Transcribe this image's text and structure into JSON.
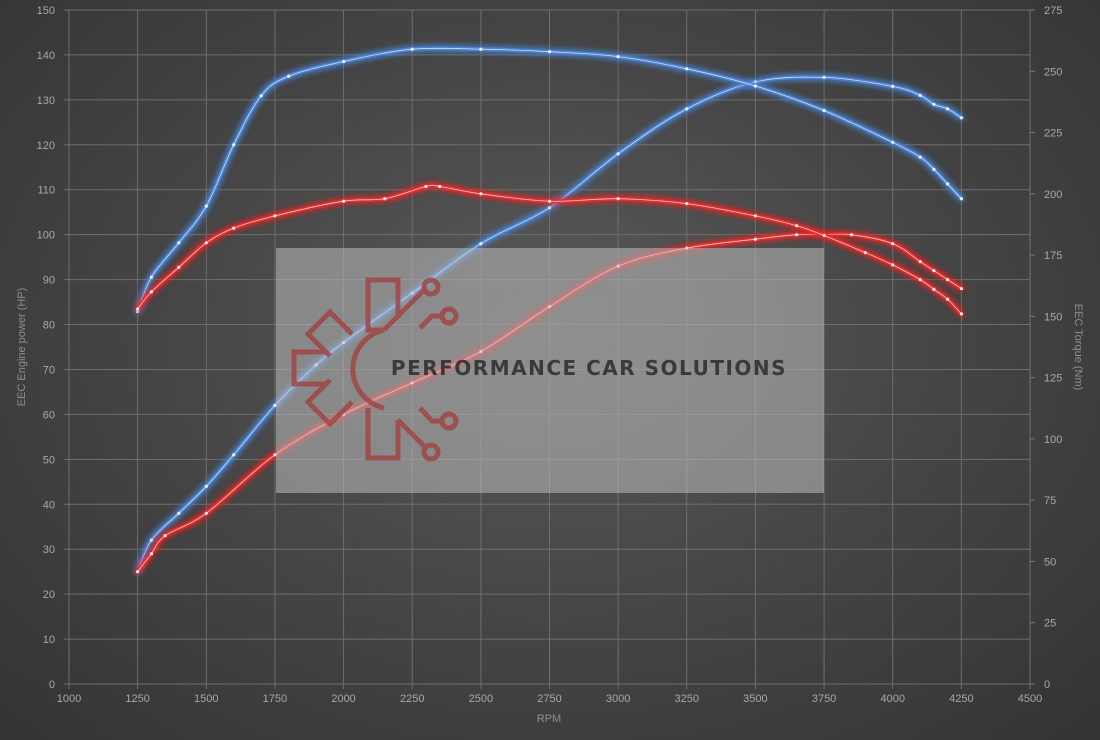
{
  "chart_data": {
    "type": "line",
    "xlabel": "RPM",
    "ylabel_left": "EEC Engine power (HP)",
    "ylabel_right": "EEC Torque (Nm)",
    "xlim": [
      1000,
      4500
    ],
    "ylim_left": [
      0,
      150
    ],
    "ylim_right": [
      0,
      275
    ],
    "x_ticks": [
      "1000",
      "1250",
      "1500",
      "1750",
      "2000",
      "2250",
      "2500",
      "2750",
      "3000",
      "3250",
      "3500",
      "3750",
      "4000",
      "4250",
      "4500"
    ],
    "y_ticks_left": [
      "0",
      "10",
      "20",
      "30",
      "40",
      "50",
      "60",
      "70",
      "80",
      "90",
      "100",
      "110",
      "120",
      "130",
      "140",
      "150"
    ],
    "y_ticks_right": [
      "0",
      "25",
      "50",
      "75",
      "100",
      "125",
      "150",
      "175",
      "200",
      "225",
      "250",
      "275"
    ],
    "grid": true,
    "legend": "none",
    "series": [
      {
        "axis": "left",
        "color": "#4a86d8",
        "x": [
          1250,
          1300,
          1400,
          1500,
          1600,
          1750,
          1900,
          2000,
          2250,
          2500,
          2750,
          3000,
          3250,
          3500,
          3750,
          4000,
          4100,
          4150,
          4200,
          4250
        ],
        "values": [
          25,
          32,
          38,
          44,
          51,
          62,
          71,
          76,
          87,
          98,
          106,
          118,
          128,
          134,
          135,
          133,
          131,
          129,
          128,
          126
        ]
      },
      {
        "axis": "right",
        "color": "#4a86d8",
        "x": [
          1250,
          1300,
          1400,
          1500,
          1600,
          1700,
          1800,
          2000,
          2250,
          2500,
          2750,
          3000,
          3250,
          3500,
          3750,
          4000,
          4100,
          4150,
          4200,
          4250
        ],
        "values": [
          152,
          166,
          180,
          195,
          220,
          240,
          248,
          254,
          259,
          259,
          258,
          256,
          251,
          244,
          234,
          221,
          215,
          210,
          204,
          198
        ]
      },
      {
        "axis": "left",
        "color": "#e82a2a",
        "x": [
          1250,
          1300,
          1350,
          1500,
          1750,
          2000,
          2250,
          2500,
          2750,
          3000,
          3250,
          3500,
          3650,
          3750,
          3850,
          4000,
          4100,
          4150,
          4200,
          4250
        ],
        "values": [
          25,
          29,
          33,
          38,
          51,
          60,
          67,
          74,
          84,
          93,
          97,
          99,
          100,
          100,
          100,
          98,
          94,
          92,
          90,
          88
        ]
      },
      {
        "axis": "right",
        "color": "#e82a2a",
        "x": [
          1250,
          1300,
          1400,
          1500,
          1600,
          1750,
          2000,
          2150,
          2300,
          2350,
          2500,
          2750,
          3000,
          3250,
          3500,
          3650,
          3750,
          3900,
          4000,
          4100,
          4150,
          4200,
          4250
        ],
        "values": [
          153,
          160,
          170,
          180,
          186,
          191,
          197,
          198,
          203,
          203,
          200,
          197,
          198,
          196,
          191,
          187,
          183,
          176,
          171,
          165,
          161,
          157,
          151
        ]
      }
    ]
  },
  "watermark": {
    "text": "PERFORMANCE CAR SOLUTIONS"
  }
}
